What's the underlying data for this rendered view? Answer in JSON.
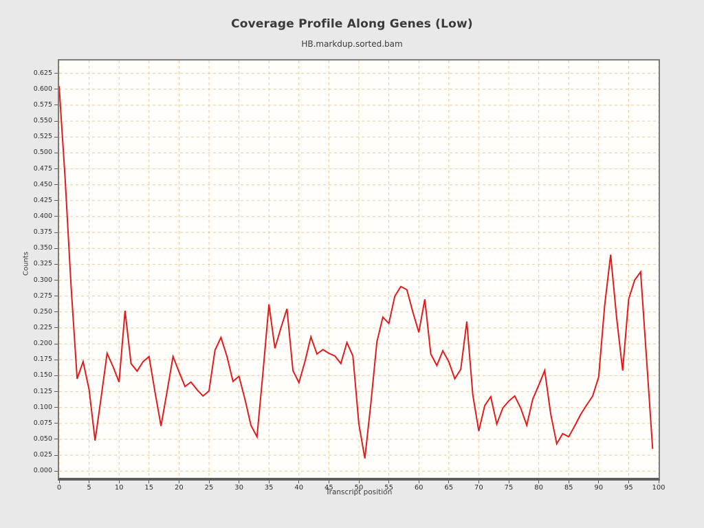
{
  "header": {
    "title": "Coverage Profile Along Genes (Low)",
    "subtitle": "HB.markdup.sorted.bam"
  },
  "chart_data": {
    "type": "line",
    "title": "Coverage Profile Along Genes (Low)",
    "subtitle": "HB.markdup.sorted.bam",
    "xlabel": "Transcript position",
    "ylabel": "Counts",
    "legend": null,
    "grid": true,
    "xlim": [
      0,
      100
    ],
    "ylim": [
      -0.0105,
      0.6452
    ],
    "x_ticks": [
      "0",
      "5",
      "10",
      "15",
      "20",
      "25",
      "30",
      "35",
      "40",
      "45",
      "50",
      "55",
      "60",
      "65",
      "70",
      "75",
      "80",
      "85",
      "90",
      "95",
      "100"
    ],
    "y_ticks": [
      "0.625",
      "0.600",
      "0.575",
      "0.550",
      "0.525",
      "0.500",
      "0.475",
      "0.450",
      "0.425",
      "0.400",
      "0.375",
      "0.350",
      "0.325",
      "0.300",
      "0.275",
      "0.250",
      "0.225",
      "0.200",
      "0.175",
      "0.150",
      "0.125",
      "0.100",
      "0.075",
      "0.050",
      "0.025",
      "0.000"
    ],
    "series_name": "coverage",
    "series_color": "#e31a1c",
    "grid_color": "#f0c9a0",
    "plot_bg": "#fffefa",
    "page_bg": "#e9e9e9",
    "x": [
      0,
      1,
      2,
      3,
      4,
      5,
      6,
      7,
      8,
      9,
      10,
      11,
      12,
      13,
      14,
      15,
      16,
      17,
      18,
      19,
      20,
      21,
      22,
      23,
      24,
      25,
      26,
      27,
      28,
      29,
      30,
      31,
      32,
      33,
      34,
      35,
      36,
      37,
      38,
      39,
      40,
      41,
      42,
      43,
      44,
      45,
      46,
      47,
      48,
      49,
      50,
      51,
      52,
      53,
      54,
      55,
      56,
      57,
      58,
      59,
      60,
      61,
      62,
      63,
      64,
      65,
      66,
      67,
      68,
      69,
      70,
      71,
      72,
      73,
      74,
      75,
      76,
      77,
      78,
      79,
      80,
      81,
      82,
      83,
      84,
      85,
      86,
      87,
      88,
      89,
      90,
      91,
      92,
      93,
      94,
      95,
      96,
      97,
      98,
      99
    ],
    "values": [
      0.605,
      0.46,
      0.29,
      0.145,
      0.172,
      0.128,
      0.048,
      0.115,
      0.185,
      0.164,
      0.14,
      0.252,
      0.169,
      0.157,
      0.172,
      0.18,
      0.124,
      0.071,
      0.125,
      0.18,
      0.156,
      0.133,
      0.14,
      0.128,
      0.118,
      0.126,
      0.19,
      0.21,
      0.18,
      0.141,
      0.149,
      0.113,
      0.072,
      0.054,
      0.155,
      0.262,
      0.193,
      0.225,
      0.255,
      0.158,
      0.139,
      0.172,
      0.211,
      0.184,
      0.191,
      0.185,
      0.181,
      0.169,
      0.202,
      0.181,
      0.074,
      0.02,
      0.106,
      0.203,
      0.242,
      0.232,
      0.275,
      0.29,
      0.285,
      0.25,
      0.218,
      0.27,
      0.184,
      0.166,
      0.189,
      0.172,
      0.145,
      0.16,
      0.235,
      0.12,
      0.063,
      0.103,
      0.117,
      0.074,
      0.099,
      0.11,
      0.118,
      0.099,
      0.072,
      0.113,
      0.135,
      0.158,
      0.09,
      0.043,
      0.059,
      0.054,
      0.071,
      0.089,
      0.104,
      0.118,
      0.148,
      0.26,
      0.34,
      0.24,
      0.158,
      0.27,
      0.3,
      0.313,
      0.174,
      0.035
    ]
  }
}
